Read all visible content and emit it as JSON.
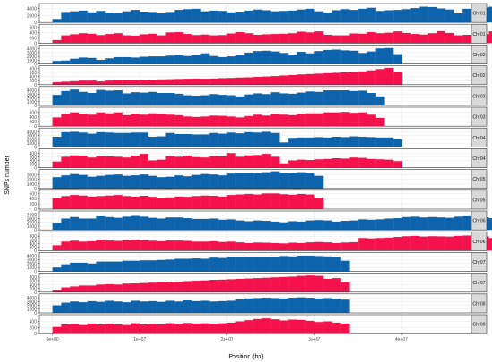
{
  "figure": {
    "ylabel": "SNPs number",
    "xlabel": "Position (bp)",
    "x_ticks": [
      {
        "value": 0,
        "label": "0e+00"
      },
      {
        "value": 10000000,
        "label": "1e+07"
      },
      {
        "value": 20000000,
        "label": "2e+07"
      },
      {
        "value": 30000000,
        "label": "3e+07"
      },
      {
        "value": 40000000,
        "label": "4e+07"
      }
    ],
    "colors": {
      "blue": "#0e64ac",
      "red": "#f5124c",
      "strip_bg": "#d9d9d9",
      "grid": "#ebebeb",
      "panel_border": "#333333"
    }
  },
  "chart_data": {
    "type": "bar",
    "facet_by": "chromosome",
    "xlim": [
      -1500000,
      48000000
    ],
    "bin_width_bp": 1000000,
    "panels": [
      {
        "strip": "Chr01",
        "color": "blue",
        "ylim": [
          0,
          5400
        ],
        "y_ticks": [
          "0",
          "2000",
          "4000"
        ],
        "y_tick_values": [
          0,
          2000,
          4000
        ],
        "values": [
          1000,
          3000,
          3200,
          3400,
          2900,
          3300,
          2800,
          2700,
          3200,
          3600,
          3100,
          3000,
          2600,
          3000,
          3600,
          3800,
          3900,
          3200,
          3400,
          3300,
          2900,
          3100,
          3400,
          3700,
          3500,
          3200,
          3300,
          3400,
          3700,
          3900,
          3200,
          2800,
          3500,
          3800,
          3600,
          3900,
          4200,
          3300,
          3500,
          3600,
          3800,
          4100,
          4500,
          4400,
          4000,
          3700,
          2600,
          3900,
          4200,
          4300,
          4500,
          4700,
          4600,
          5100,
          4800,
          3900,
          3300,
          3600,
          4000,
          4300,
          4400,
          4800,
          4900,
          4900,
          3600,
          3200,
          3800,
          4100,
          4000,
          4200,
          4500,
          4500,
          5100,
          5200,
          4600,
          4000,
          2400,
          4100,
          3500
        ]
      },
      {
        "strip": "Chr01",
        "color": "red",
        "ylim": [
          0,
          720
        ],
        "y_ticks": [
          "0",
          "200",
          "400",
          "600"
        ],
        "y_tick_values": [
          0,
          200,
          400,
          600
        ],
        "values": [
          120,
          300,
          340,
          380,
          360,
          310,
          350,
          380,
          300,
          290,
          340,
          360,
          300,
          410,
          420,
          350,
          310,
          330,
          300,
          310,
          370,
          420,
          380,
          320,
          340,
          350,
          360,
          380,
          440,
          410,
          450,
          320,
          300,
          300,
          370,
          360,
          420,
          380,
          400,
          450,
          390,
          350,
          330,
          380,
          460,
          390,
          300,
          320,
          340,
          340,
          450,
          380,
          300,
          380,
          400,
          480,
          300,
          320,
          350,
          330,
          360,
          420,
          390,
          350,
          500,
          420,
          360,
          350,
          380,
          390,
          300,
          400,
          450,
          600,
          510,
          380,
          320,
          300,
          150
        ]
      },
      {
        "strip": "Chr02",
        "color": "blue",
        "ylim": [
          0,
          5000
        ],
        "y_ticks": [
          "0",
          "1000",
          "2000",
          "3000",
          "4000"
        ],
        "y_tick_values": [
          0,
          1000,
          2000,
          3000,
          4000
        ],
        "values": [
          800,
          900,
          1400,
          1700,
          1600,
          1100,
          1500,
          1800,
          1800,
          1700,
          1900,
          2000,
          2000,
          2200,
          2300,
          2100,
          2400,
          2800,
          2100,
          1800,
          2000,
          2300,
          3000,
          3400,
          3500,
          3300,
          2900,
          2500,
          3200,
          2800,
          3400,
          3700,
          3800,
          3600,
          3500,
          2900,
          3300,
          4100,
          4200,
          2600
        ]
      },
      {
        "strip": "Chr02",
        "color": "red",
        "ylim": [
          0,
          920
        ],
        "y_ticks": [
          "0",
          "200",
          "400",
          "600",
          "800"
        ],
        "y_tick_values": [
          0,
          200,
          400,
          600,
          800
        ],
        "values": [
          120,
          150,
          170,
          200,
          200,
          160,
          200,
          220,
          230,
          230,
          240,
          250,
          260,
          270,
          280,
          290,
          300,
          290,
          300,
          320,
          330,
          350,
          360,
          380,
          400,
          420,
          450,
          470,
          500,
          520,
          540,
          560,
          580,
          600,
          620,
          650,
          700,
          760,
          820,
          630
        ]
      },
      {
        "strip": "Chr03",
        "color": "blue",
        "ylim": [
          0,
          5000
        ],
        "y_ticks": [
          "0",
          "1000",
          "2000",
          "3000",
          "4000"
        ],
        "y_tick_values": [
          0,
          1000,
          2000,
          3000,
          4000
        ],
        "values": [
          2800,
          3800,
          4200,
          3600,
          3300,
          4100,
          3900,
          4000,
          3200,
          3500,
          3400,
          3600,
          3300,
          3300,
          3100,
          2700,
          2600,
          2700,
          3000,
          2800,
          2700,
          2400,
          2900,
          3200,
          3000,
          3500,
          3200,
          3100,
          3400,
          3700,
          3600,
          4000,
          4000,
          4000,
          3800,
          3900,
          3300,
          2400
        ]
      },
      {
        "strip": "Chr03",
        "color": "red",
        "ylim": [
          0,
          820
        ],
        "y_ticks": [
          "0",
          "200",
          "400",
          "600"
        ],
        "y_tick_values": [
          0,
          200,
          400,
          600
        ],
        "values": [
          380,
          520,
          600,
          550,
          500,
          600,
          560,
          600,
          480,
          520,
          500,
          560,
          520,
          500,
          480,
          420,
          400,
          420,
          460,
          450,
          420,
          380,
          440,
          500,
          460,
          540,
          500,
          480,
          520,
          560,
          560,
          600,
          600,
          620,
          580,
          600,
          500,
          360
        ]
      },
      {
        "strip": "Chr04",
        "color": "blue",
        "ylim": [
          0,
          5000
        ],
        "y_ticks": [
          "0",
          "1000",
          "2000",
          "3000",
          "4000"
        ],
        "y_tick_values": [
          0,
          1000,
          2000,
          3000,
          4000
        ],
        "values": [
          2700,
          3900,
          4000,
          3800,
          3500,
          3900,
          3800,
          3700,
          3700,
          3800,
          3800,
          2700,
          2800,
          3700,
          3400,
          3400,
          3300,
          3300,
          3700,
          3500,
          3800,
          3600,
          3900,
          3800,
          4000,
          3700,
          1200,
          2400,
          2500,
          2500,
          2600,
          2500,
          2700,
          2600,
          2800,
          2700,
          2600,
          2500,
          2500,
          2000
        ]
      },
      {
        "strip": "Chr04",
        "color": "red",
        "ylim": [
          0,
          520
        ],
        "y_ticks": [
          "0",
          "100",
          "200",
          "300",
          "400"
        ],
        "y_tick_values": [
          0,
          100,
          200,
          300,
          400
        ],
        "values": [
          170,
          300,
          340,
          330,
          280,
          320,
          310,
          300,
          280,
          330,
          380,
          200,
          220,
          320,
          300,
          330,
          290,
          280,
          320,
          310,
          400,
          300,
          340,
          350,
          380,
          300,
          120,
          200,
          220,
          210,
          230,
          240,
          260,
          250,
          280,
          270,
          240,
          230,
          220,
          180
        ]
      },
      {
        "strip": "Chr05",
        "color": "blue",
        "ylim": [
          0,
          4200
        ],
        "y_ticks": [
          "0",
          "1000",
          "2000",
          "3000"
        ],
        "y_tick_values": [
          0,
          1000,
          2000,
          3000
        ],
        "values": [
          2500,
          2900,
          3200,
          3000,
          2600,
          2800,
          3000,
          3100,
          2800,
          2900,
          3100,
          2800,
          2500,
          2600,
          2900,
          2700,
          3000,
          3200,
          3100,
          2900,
          3300,
          3500,
          3500,
          3400,
          3600,
          3800,
          3500,
          3400,
          3600,
          3500,
          2800
        ]
      },
      {
        "strip": "Chr05",
        "color": "red",
        "ylim": [
          0,
          720
        ],
        "y_ticks": [
          "0",
          "200",
          "400",
          "600"
        ],
        "y_tick_values": [
          0,
          200,
          400,
          600
        ],
        "values": [
          420,
          500,
          540,
          520,
          480,
          500,
          520,
          540,
          500,
          480,
          510,
          470,
          440,
          450,
          480,
          470,
          500,
          520,
          510,
          480,
          540,
          560,
          580,
          560,
          600,
          600,
          570,
          550,
          580,
          560,
          440
        ]
      },
      {
        "strip": "Chr06",
        "color": "blue",
        "ylim": [
          0,
          5000
        ],
        "y_ticks": [
          "0",
          "1000",
          "2000",
          "3000",
          "4000"
        ],
        "y_tick_values": [
          0,
          1000,
          2000,
          3000,
          4000
        ],
        "values": [
          1800,
          3000,
          3400,
          3000,
          3000,
          3600,
          3400,
          3200,
          3500,
          3700,
          3500,
          3200,
          3000,
          3300,
          3300,
          3100,
          2900,
          2900,
          3000,
          2700,
          2800,
          2500,
          2300,
          2500,
          2400,
          2200,
          2000,
          2300,
          2200,
          2500,
          2600,
          2500,
          2200,
          2400,
          2500,
          2800,
          2700,
          2800,
          3000,
          3100,
          3400,
          3500,
          3300,
          3400,
          3300,
          3200,
          3500,
          3600,
          3400,
          3300,
          3100,
          300
        ]
      },
      {
        "strip": "Chr06",
        "color": "red",
        "ylim": [
          0,
          1050
        ],
        "y_ticks": [
          "0",
          "200",
          "400",
          "600",
          "800"
        ],
        "y_tick_values": [
          0,
          200,
          400,
          600,
          800
        ],
        "values": [
          300,
          500,
          550,
          500,
          520,
          600,
          560,
          540,
          580,
          600,
          580,
          550,
          520,
          560,
          560,
          540,
          500,
          500,
          520,
          480,
          500,
          460,
          420,
          450,
          440,
          420,
          400,
          440,
          420,
          460,
          480,
          460,
          420,
          450,
          470,
          700,
          680,
          700,
          720,
          760,
          800,
          820,
          780,
          800,
          790,
          780,
          820,
          840,
          800,
          790,
          700,
          80
        ]
      },
      {
        "strip": "Chr07",
        "color": "blue",
        "ylim": [
          0,
          4800
        ],
        "y_ticks": [
          "0",
          "1000",
          "2000",
          "3000",
          "4000"
        ],
        "y_tick_values": [
          0,
          1000,
          2000,
          3000,
          4000
        ],
        "values": [
          1000,
          1800,
          2200,
          2200,
          2000,
          2500,
          2500,
          2500,
          2700,
          2700,
          2800,
          2800,
          2900,
          3000,
          3200,
          3200,
          3300,
          3200,
          3500,
          3400,
          3600,
          3600,
          3700,
          3700,
          3700,
          3600,
          3900,
          3800,
          4000,
          4000,
          3900,
          3800,
          3700,
          2700
        ]
      },
      {
        "strip": "Chr07",
        "color": "red",
        "ylim": [
          0,
          1000
        ],
        "y_ticks": [
          "0",
          "200",
          "400",
          "600",
          "800"
        ],
        "y_tick_values": [
          0,
          200,
          400,
          600,
          800
        ],
        "values": [
          100,
          250,
          300,
          350,
          350,
          400,
          420,
          400,
          450,
          460,
          480,
          500,
          520,
          550,
          560,
          580,
          600,
          620,
          650,
          660,
          680,
          700,
          720,
          740,
          760,
          780,
          800,
          820,
          860,
          880,
          860,
          700,
          740,
          520
        ]
      },
      {
        "strip": "Chr08",
        "color": "blue",
        "ylim": [
          0,
          5000
        ],
        "y_ticks": [
          "0",
          "1000",
          "2000",
          "3000",
          "4000"
        ],
        "y_tick_values": [
          0,
          1000,
          2000,
          3000,
          4000
        ],
        "values": [
          2000,
          2700,
          3000,
          2800,
          3100,
          2900,
          3200,
          3000,
          2800,
          3200,
          3000,
          3100,
          2900,
          3200,
          3000,
          3300,
          3100,
          3200,
          3000,
          3100,
          3200,
          3600,
          3800,
          3900,
          4000,
          3900,
          3800,
          4000,
          4100,
          4000,
          3800,
          3900,
          3700,
          3500
        ]
      },
      {
        "strip": "Chr08",
        "color": "red",
        "ylim": [
          0,
          620
        ],
        "y_ticks": [
          "0",
          "200",
          "400"
        ],
        "y_tick_values": [
          0,
          200,
          400
        ],
        "values": [
          220,
          300,
          320,
          280,
          330,
          300,
          320,
          300,
          280,
          340,
          300,
          320,
          300,
          340,
          320,
          350,
          330,
          340,
          320,
          340,
          360,
          400,
          440,
          480,
          500,
          470,
          430,
          460,
          450,
          420,
          380,
          400,
          360,
          330
        ]
      }
    ]
  }
}
